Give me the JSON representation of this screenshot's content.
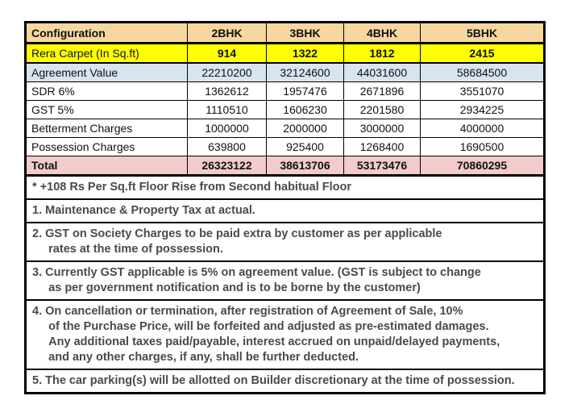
{
  "table": {
    "columns": [
      "Configuration",
      "2BHK",
      "3BHK",
      "4BHK",
      "5BHK"
    ],
    "rows": [
      {
        "label": "Rera Carpet (In Sq.ft)",
        "values": [
          "914",
          "1322",
          "1812",
          "2415"
        ]
      },
      {
        "label": "Agreement Value",
        "values": [
          "22210200",
          "32124600",
          "44031600",
          "58684500"
        ]
      },
      {
        "label": "SDR 6%",
        "values": [
          "1362612",
          "1957476",
          "2671896",
          "3551070"
        ]
      },
      {
        "label": "GST 5%",
        "values": [
          "1110510",
          "1606230",
          "2201580",
          "2934225"
        ]
      },
      {
        "label": "Betterment Charges",
        "values": [
          "1000000",
          "2000000",
          "3000000",
          "4000000"
        ]
      },
      {
        "label": "Possession Charges",
        "values": [
          "639800",
          "925400",
          "1268400",
          "1690500"
        ]
      },
      {
        "label": "Total",
        "values": [
          "26323122",
          "38613706",
          "53173476",
          "70860295"
        ]
      }
    ]
  },
  "notes": [
    "* +108 Rs Per Sq.ft Floor Rise from Second habitual Floor",
    "1. Maintenance & Property Tax at actual.",
    "2. GST on Society Charges to be paid extra by customer as per applicable\n     rates at the time of possession.",
    "3. Currently GST applicable is 5% on agreement value. (GST is subject to change\n     as per government notification and is to be borne by the customer)",
    "4. On cancellation or termination, after registration of Agreement of Sale, 10%\n     of the Purchase Price, will be forfeited and adjusted as pre-estimated damages.\n     Any additional taxes paid/payable, interest accrued on unpaid/delayed payments,\n     and any other charges, if any, shall be further deducted.",
    "5. The car parking(s) will be allotted on Builder discretionary at the time of possession."
  ],
  "colors": {
    "header_bg": "#f6d7a0",
    "rera_bg": "#ffff00",
    "agreement_bg": "#d9e4f1",
    "total_bg": "#f2cbcb",
    "border": "#000000",
    "note_text": "#4a4a4a"
  }
}
